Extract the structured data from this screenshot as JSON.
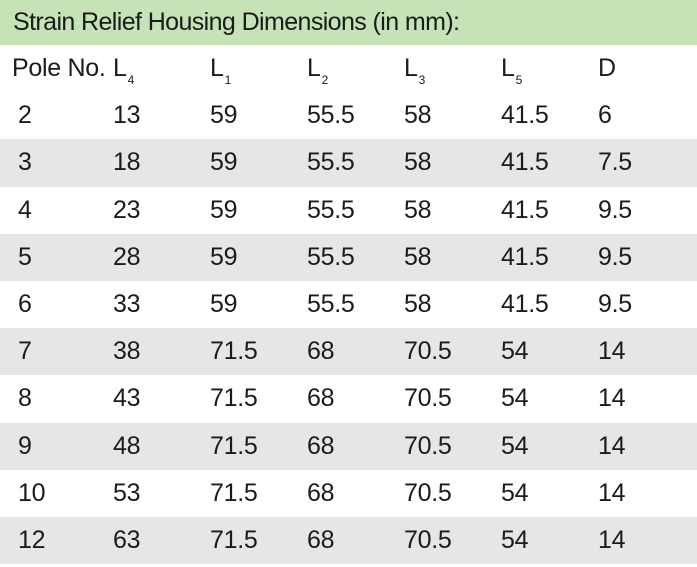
{
  "title": "Strain Relief Housing Dimensions (in mm):",
  "headers": [
    {
      "main": "Pole No.",
      "sub": ""
    },
    {
      "main": "L",
      "sub": "4"
    },
    {
      "main": "L",
      "sub": "1"
    },
    {
      "main": "L",
      "sub": "2"
    },
    {
      "main": "L",
      "sub": "3"
    },
    {
      "main": "L",
      "sub": "5"
    },
    {
      "main": "D",
      "sub": ""
    }
  ],
  "rows": [
    [
      "2",
      "13",
      "59",
      "55.5",
      "58",
      "41.5",
      "6"
    ],
    [
      "3",
      "18",
      "59",
      "55.5",
      "58",
      "41.5",
      "7.5"
    ],
    [
      "4",
      "23",
      "59",
      "55.5",
      "58",
      "41.5",
      "9.5"
    ],
    [
      "5",
      "28",
      "59",
      "55.5",
      "58",
      "41.5",
      "9.5"
    ],
    [
      "6",
      "33",
      "59",
      "55.5",
      "58",
      "41.5",
      "9.5"
    ],
    [
      "7",
      "38",
      "71.5",
      "68",
      "70.5",
      "54",
      "14"
    ],
    [
      "8",
      "43",
      "71.5",
      "68",
      "70.5",
      "54",
      "14"
    ],
    [
      "9",
      "48",
      "71.5",
      "68",
      "70.5",
      "54",
      "14"
    ],
    [
      "10",
      "53",
      "71.5",
      "68",
      "70.5",
      "54",
      "14"
    ],
    [
      "12",
      "63",
      "71.5",
      "68",
      "70.5",
      "54",
      "14"
    ]
  ]
}
